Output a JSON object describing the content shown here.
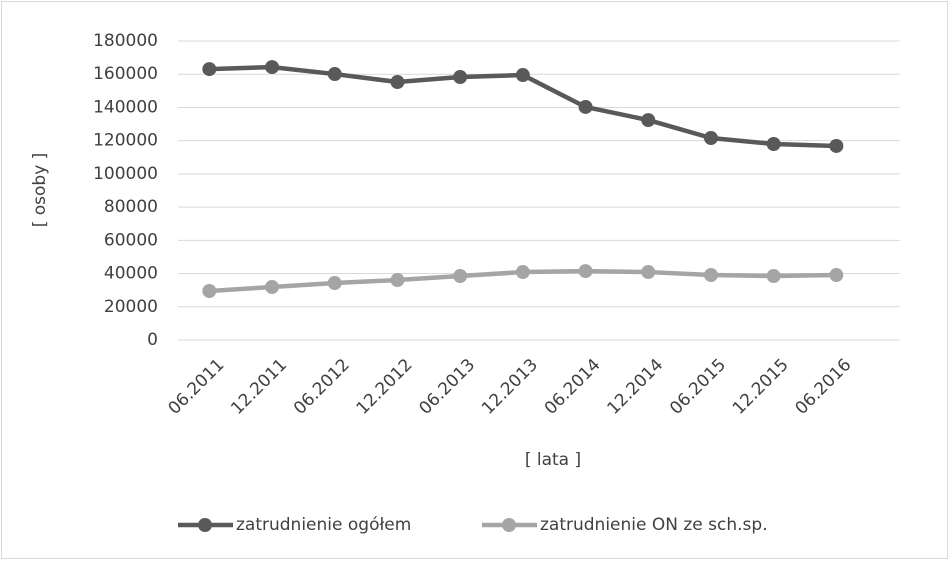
{
  "chart_data": {
    "type": "line",
    "x_label": "[ lata ]",
    "y_label": "[ osoby ]",
    "categories": [
      "06.2011",
      "12.2011",
      "06.2012",
      "12.2012",
      "06.2013",
      "12.2013",
      "06.2014",
      "12.2014",
      "06.2015",
      "12.2015",
      "06.2016"
    ],
    "series": [
      {
        "name": "zatrudnienie ogółem",
        "color": "#595959",
        "values": [
          163100,
          164300,
          160100,
          155300,
          158300,
          159500,
          140300,
          132400,
          121600,
          118000,
          116800
        ]
      },
      {
        "name": "zatrudnienie ON ze sch.sp.",
        "color": "#a5a5a5",
        "values": [
          29500,
          31900,
          34300,
          36100,
          38500,
          40900,
          41500,
          40900,
          39100,
          38500,
          39100
        ]
      }
    ],
    "ylim": [
      0,
      180000
    ],
    "yticks": [
      0,
      20000,
      40000,
      60000,
      80000,
      100000,
      120000,
      140000,
      160000,
      180000
    ],
    "grid": true,
    "legend": "bottom"
  }
}
